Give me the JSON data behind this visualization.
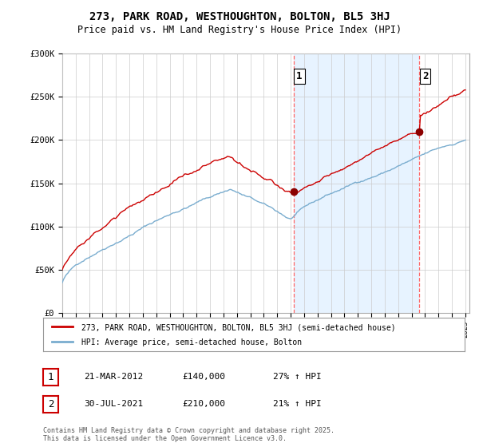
{
  "title": "273, PARK ROAD, WESTHOUGHTON, BOLTON, BL5 3HJ",
  "subtitle": "Price paid vs. HM Land Registry's House Price Index (HPI)",
  "x_start_year": 1995,
  "x_end_year": 2025,
  "y_min": 0,
  "y_max": 300000,
  "y_ticks": [
    0,
    50000,
    100000,
    150000,
    200000,
    250000,
    300000
  ],
  "y_tick_labels": [
    "£0",
    "£50K",
    "£100K",
    "£150K",
    "£200K",
    "£250K",
    "£300K"
  ],
  "sale1_date": 2012.22,
  "sale1_price": 140000,
  "sale1_label": "1",
  "sale2_date": 2021.58,
  "sale2_price": 210000,
  "sale2_label": "2",
  "line_color_house": "#cc0000",
  "line_color_hpi": "#7aadcf",
  "shade_color": "#ddeeff",
  "marker_color": "#8b0000",
  "vline_color": "#ff6666",
  "background_color": "#ffffff",
  "grid_color": "#cccccc",
  "legend_label_house": "273, PARK ROAD, WESTHOUGHTON, BOLTON, BL5 3HJ (semi-detached house)",
  "legend_label_hpi": "HPI: Average price, semi-detached house, Bolton",
  "annotation1_date": "21-MAR-2012",
  "annotation1_price": "£140,000",
  "annotation1_pct": "27% ↑ HPI",
  "annotation2_date": "30-JUL-2021",
  "annotation2_price": "£210,000",
  "annotation2_pct": "21% ↑ HPI",
  "footnote": "Contains HM Land Registry data © Crown copyright and database right 2025.\nThis data is licensed under the Open Government Licence v3.0."
}
